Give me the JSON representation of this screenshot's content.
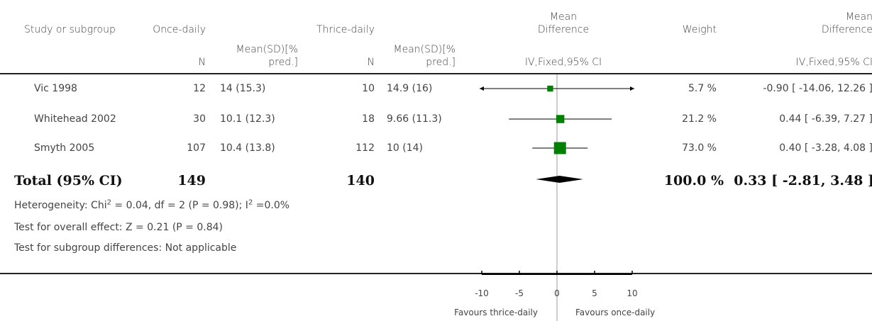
{
  "headers": {
    "study": "Study or subgroup",
    "group1": "Once-daily",
    "group2": "Thrice-daily",
    "md_line1": "Mean",
    "md_line2": "Difference",
    "weight": "Weight",
    "md2_line1": "Mean",
    "md2_line2": "Difference",
    "n1": "N",
    "meansd1_line1": "Mean(SD)[%",
    "meansd1_line2": "pred.]",
    "n2": "N",
    "meansd2_line1": "Mean(SD)[%",
    "meansd2_line2": "pred.]",
    "method1": "IV,Fixed,95% CI",
    "method2": "IV,Fixed,95% CI"
  },
  "rows": [
    {
      "study": "Vic 1998",
      "n1": "12",
      "mean1": "14 (15.3)",
      "n2": "10",
      "mean2": "14.9 (16)",
      "weight": "5.7 %",
      "ci": "-0.90 [ -14.06, 12.26 ]"
    },
    {
      "study": "Whitehead 2002",
      "n1": "30",
      "mean1": "10.1 (12.3)",
      "n2": "18",
      "mean2": "9.66 (11.3)",
      "weight": "21.2 %",
      "ci": "0.44 [ -6.39, 7.27 ]"
    },
    {
      "study": "Smyth 2005",
      "n1": "107",
      "mean1": "10.4 (13.8)",
      "n2": "112",
      "mean2": "10 (14)",
      "weight": "73.0 %",
      "ci": "0.40 [ -3.28, 4.08 ]"
    }
  ],
  "total": {
    "label": "Total (95% CI)",
    "n1": "149",
    "n2": "140",
    "weight": "100.0 %",
    "ci": "0.33 [ -2.81, 3.48 ]"
  },
  "notes": {
    "heterogeneity_prefix": "Heterogeneity: Chi",
    "heterogeneity_sup1": "2",
    "heterogeneity_mid": " = 0.04, df = 2 (P = 0.98); I",
    "heterogeneity_sup2": "2",
    "heterogeneity_suffix": " =0.0%",
    "overall": "Test for overall effect: Z = 0.21  (P = 0.84)",
    "subgroup": "Test for subgroup differences: Not applicable"
  },
  "footer": {
    "favours_left": "Favours thrice-daily",
    "favours_right": "Favours once-daily"
  },
  "colors": {
    "marker": "#008000",
    "line": "#000000",
    "axis": "#000000",
    "center_line": "#999999"
  },
  "chart_data": {
    "type": "forest",
    "xlim": [
      -10,
      10
    ],
    "xticks": [
      -10,
      -5,
      0,
      5,
      10
    ],
    "tick_labels": [
      "-10",
      "-5",
      "0",
      "5",
      "10"
    ],
    "studies": [
      {
        "name": "Vic 1998",
        "estimate": -0.9,
        "lower": -14.06,
        "upper": 12.26,
        "weight": 5.7
      },
      {
        "name": "Whitehead 2002",
        "estimate": 0.44,
        "lower": -6.39,
        "upper": 7.27,
        "weight": 21.2
      },
      {
        "name": "Smyth 2005",
        "estimate": 0.4,
        "lower": -3.28,
        "upper": 4.08,
        "weight": 73.0
      }
    ],
    "pooled": {
      "estimate": 0.33,
      "lower": -2.81,
      "upper": 3.48
    }
  }
}
